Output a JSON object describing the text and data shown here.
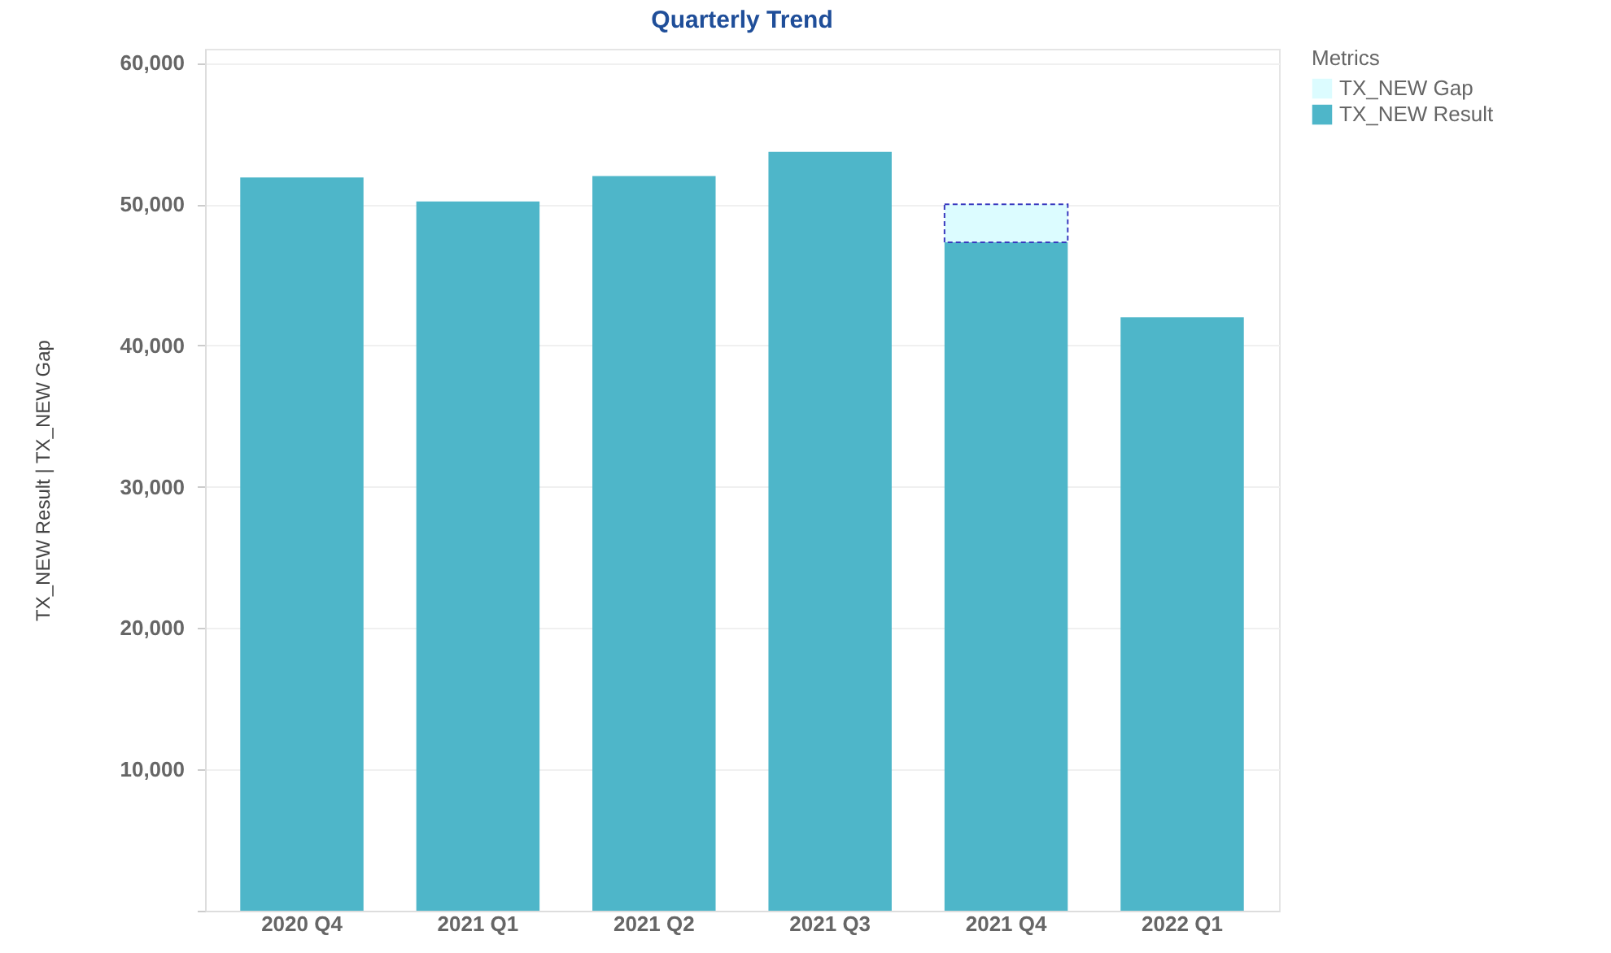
{
  "chart_data": {
    "type": "bar",
    "title": "Quarterly Trend",
    "ylabel": "TX_NEW Result  |  TX_NEW Gap",
    "legend_title": "Metrics",
    "categories": [
      "2020 Q4",
      "2021 Q1",
      "2021 Q2",
      "2021 Q3",
      "2021 Q4",
      "2022 Q1"
    ],
    "stacked": true,
    "series": [
      {
        "name": "TX_NEW Result",
        "color": "#4eb6c9",
        "values": [
          51900,
          50200,
          52000,
          53700,
          47300,
          42000
        ]
      },
      {
        "name": "TX_NEW Gap",
        "color": "#dcfcff",
        "values": [
          null,
          null,
          null,
          null,
          2700,
          null
        ]
      }
    ],
    "ylim": [
      0,
      61000
    ],
    "yticks": [
      {
        "value": 0,
        "label": null
      },
      {
        "value": 10000,
        "label": "10,000"
      },
      {
        "value": 20000,
        "label": "20,000"
      },
      {
        "value": 30000,
        "label": "30,000"
      },
      {
        "value": 40000,
        "label": "40,000"
      },
      {
        "value": 50000,
        "label": "50,000"
      },
      {
        "value": 60000,
        "label": "60,000"
      }
    ],
    "grid": "y",
    "legend": "right"
  }
}
